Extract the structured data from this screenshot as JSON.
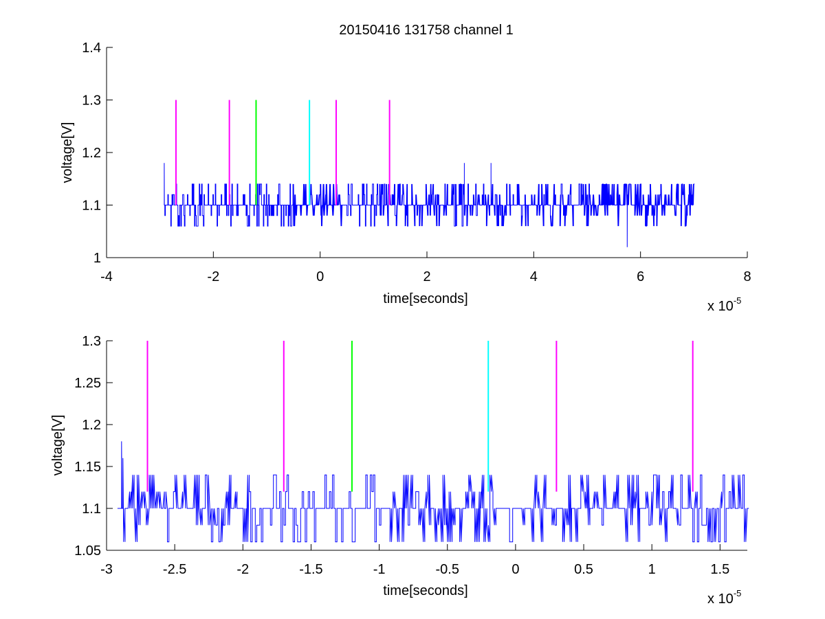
{
  "figure": {
    "title": "20150416 131758 channel 1"
  },
  "colors": {
    "signal": "#0000ff",
    "magenta": "#ff00ff",
    "green": "#00ff00",
    "cyan": "#00ffff",
    "axis": "#000000"
  },
  "chart_data": [
    {
      "type": "line",
      "title": "20150416 131758 channel 1",
      "xlabel": "time[seconds]",
      "ylabel": "voltage[V]",
      "x_exponent_label": "x 10",
      "x_exponent": "-5",
      "xlim": [
        -4,
        8
      ],
      "ylim": [
        1,
        1.4
      ],
      "xticks": [
        -4,
        -2,
        0,
        2,
        4,
        6,
        8
      ],
      "xtick_labels": [
        "-4",
        "-2",
        "0",
        "2",
        "4",
        "6",
        "8"
      ],
      "yticks": [
        1,
        1.1,
        1.2,
        1.3,
        1.4
      ],
      "ytick_labels": [
        "1",
        "1.1",
        "1.2",
        "1.3",
        "1.4"
      ],
      "grid": false,
      "signal": {
        "x_start": -2.92,
        "x_end": 7.0,
        "baseline": 1.1,
        "levels": [
          1.06,
          1.08,
          1.1,
          1.12,
          1.14
        ],
        "spikes": [
          [
            -2.92,
            1.18
          ],
          [
            2.7,
            1.18
          ],
          [
            3.2,
            1.18
          ],
          [
            5.75,
            1.02
          ]
        ]
      },
      "markers": [
        {
          "x": -2.7,
          "y0": 1.1,
          "y1": 1.3,
          "color": "#ff00ff"
        },
        {
          "x": -1.7,
          "y0": 1.1,
          "y1": 1.3,
          "color": "#ff00ff"
        },
        {
          "x": -1.2,
          "y0": 1.1,
          "y1": 1.3,
          "color": "#00ff00"
        },
        {
          "x": -0.2,
          "y0": 1.1,
          "y1": 1.3,
          "color": "#00ffff"
        },
        {
          "x": 0.3,
          "y0": 1.1,
          "y1": 1.3,
          "color": "#ff00ff"
        },
        {
          "x": 1.3,
          "y0": 1.1,
          "y1": 1.3,
          "color": "#ff00ff"
        }
      ]
    },
    {
      "type": "line",
      "xlabel": "time[seconds]",
      "ylabel": "voltage[V]",
      "x_exponent_label": "x 10",
      "x_exponent": "-5",
      "xlim": [
        -3,
        1.7
      ],
      "ylim": [
        1.05,
        1.3
      ],
      "xticks": [
        -3,
        -2.5,
        -2,
        -1.5,
        -1,
        -0.5,
        0,
        0.5,
        1,
        1.5
      ],
      "xtick_labels": [
        "-3",
        "-2.5",
        "-2",
        "-1.5",
        "-1",
        "-0.5",
        "0",
        "0.5",
        "1",
        "1.5"
      ],
      "yticks": [
        1.05,
        1.1,
        1.15,
        1.2,
        1.25,
        1.3
      ],
      "ytick_labels": [
        "1.05",
        "1.1",
        "1.15",
        "1.2",
        "1.25",
        "1.3"
      ],
      "grid": false,
      "signal": {
        "x_start": -2.92,
        "x_end": 1.7,
        "baseline": 1.1,
        "levels": [
          1.06,
          1.08,
          1.1,
          1.12,
          1.14
        ],
        "spikes": [
          [
            -2.89,
            1.18
          ],
          [
            -2.88,
            1.16
          ]
        ]
      },
      "markers": [
        {
          "x": -2.7,
          "y0": 1.12,
          "y1": 1.3,
          "color": "#ff00ff"
        },
        {
          "x": -1.7,
          "y0": 1.12,
          "y1": 1.3,
          "color": "#ff00ff"
        },
        {
          "x": -1.2,
          "y0": 1.12,
          "y1": 1.3,
          "color": "#00ff00"
        },
        {
          "x": -0.2,
          "y0": 1.12,
          "y1": 1.3,
          "color": "#00ffff"
        },
        {
          "x": 0.3,
          "y0": 1.12,
          "y1": 1.3,
          "color": "#ff00ff"
        },
        {
          "x": 1.3,
          "y0": 1.12,
          "y1": 1.3,
          "color": "#ff00ff"
        }
      ]
    }
  ]
}
